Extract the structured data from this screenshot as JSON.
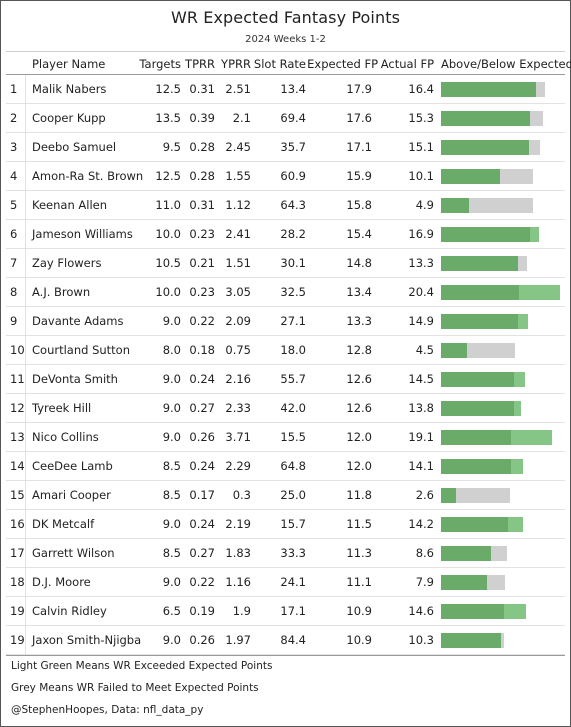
{
  "title": "WR Expected Fantasy Points",
  "subtitle": "2024 Weeks 1-2",
  "headers": {
    "player": "Player Name",
    "targets": "Targets",
    "tprr": "TPRR",
    "yprr": "YPRR",
    "slot": "Slot Rate",
    "expected": "Expected FP",
    "actual": "Actual FP",
    "diff": "Above/Below Expected"
  },
  "colors": {
    "expected_bar": "#6aab6a",
    "above_expected": "#85c585",
    "below_expected": "#d0d0d0"
  },
  "chart_data": {
    "type": "table",
    "bar_scale_max": 21,
    "rows": [
      {
        "rank": "1",
        "player": "Malik Nabers",
        "targets": "12.5",
        "tprr": "0.31",
        "yprr": "2.51",
        "slot": "13.4",
        "expected": "17.9",
        "actual": "16.4"
      },
      {
        "rank": "2",
        "player": "Cooper Kupp",
        "targets": "13.5",
        "tprr": "0.39",
        "yprr": "2.1",
        "slot": "69.4",
        "expected": "17.6",
        "actual": "15.3"
      },
      {
        "rank": "3",
        "player": "Deebo Samuel",
        "targets": "9.5",
        "tprr": "0.28",
        "yprr": "2.45",
        "slot": "35.7",
        "expected": "17.1",
        "actual": "15.1"
      },
      {
        "rank": "4",
        "player": "Amon-Ra St. Brown",
        "targets": "12.5",
        "tprr": "0.28",
        "yprr": "1.55",
        "slot": "60.9",
        "expected": "15.9",
        "actual": "10.1"
      },
      {
        "rank": "5",
        "player": "Keenan Allen",
        "targets": "11.0",
        "tprr": "0.31",
        "yprr": "1.12",
        "slot": "64.3",
        "expected": "15.8",
        "actual": "4.9"
      },
      {
        "rank": "6",
        "player": "Jameson Williams",
        "targets": "10.0",
        "tprr": "0.23",
        "yprr": "2.41",
        "slot": "28.2",
        "expected": "15.4",
        "actual": "16.9"
      },
      {
        "rank": "7",
        "player": "Zay Flowers",
        "targets": "10.5",
        "tprr": "0.21",
        "yprr": "1.51",
        "slot": "30.1",
        "expected": "14.8",
        "actual": "13.3"
      },
      {
        "rank": "8",
        "player": "A.J. Brown",
        "targets": "10.0",
        "tprr": "0.23",
        "yprr": "3.05",
        "slot": "32.5",
        "expected": "13.4",
        "actual": "20.4"
      },
      {
        "rank": "9",
        "player": "Davante Adams",
        "targets": "9.0",
        "tprr": "0.22",
        "yprr": "2.09",
        "slot": "27.1",
        "expected": "13.3",
        "actual": "14.9"
      },
      {
        "rank": "10",
        "player": "Courtland Sutton",
        "targets": "8.0",
        "tprr": "0.18",
        "yprr": "0.75",
        "slot": "18.0",
        "expected": "12.8",
        "actual": "4.5"
      },
      {
        "rank": "11",
        "player": "DeVonta Smith",
        "targets": "9.0",
        "tprr": "0.24",
        "yprr": "2.16",
        "slot": "55.7",
        "expected": "12.6",
        "actual": "14.5"
      },
      {
        "rank": "12",
        "player": "Tyreek Hill",
        "targets": "9.0",
        "tprr": "0.27",
        "yprr": "2.33",
        "slot": "42.0",
        "expected": "12.6",
        "actual": "13.8"
      },
      {
        "rank": "13",
        "player": "Nico Collins",
        "targets": "9.0",
        "tprr": "0.26",
        "yprr": "3.71",
        "slot": "15.5",
        "expected": "12.0",
        "actual": "19.1"
      },
      {
        "rank": "14",
        "player": "CeeDee Lamb",
        "targets": "8.5",
        "tprr": "0.24",
        "yprr": "2.29",
        "slot": "64.8",
        "expected": "12.0",
        "actual": "14.1"
      },
      {
        "rank": "15",
        "player": "Amari Cooper",
        "targets": "8.5",
        "tprr": "0.17",
        "yprr": "0.3",
        "slot": "25.0",
        "expected": "11.8",
        "actual": "2.6"
      },
      {
        "rank": "16",
        "player": "DK Metcalf",
        "targets": "9.0",
        "tprr": "0.24",
        "yprr": "2.19",
        "slot": "15.7",
        "expected": "11.5",
        "actual": "14.2"
      },
      {
        "rank": "17",
        "player": "Garrett Wilson",
        "targets": "8.5",
        "tprr": "0.27",
        "yprr": "1.83",
        "slot": "33.3",
        "expected": "11.3",
        "actual": "8.6"
      },
      {
        "rank": "18",
        "player": "D.J. Moore",
        "targets": "9.0",
        "tprr": "0.22",
        "yprr": "1.16",
        "slot": "24.1",
        "expected": "11.1",
        "actual": "7.9"
      },
      {
        "rank": "19",
        "player": "Calvin Ridley",
        "targets": "6.5",
        "tprr": "0.19",
        "yprr": "1.9",
        "slot": "17.1",
        "expected": "10.9",
        "actual": "14.6"
      },
      {
        "rank": "19",
        "player": "Jaxon Smith-Njigba",
        "targets": "9.0",
        "tprr": "0.26",
        "yprr": "1.97",
        "slot": "84.4",
        "expected": "10.9",
        "actual": "10.3"
      }
    ]
  },
  "footer": {
    "note1": "Light Green Means WR Exceeded Expected Points",
    "note2": "Grey Means WR Failed to Meet Expected Points",
    "credit": "@StephenHoopes, Data: nfl_data_py"
  }
}
